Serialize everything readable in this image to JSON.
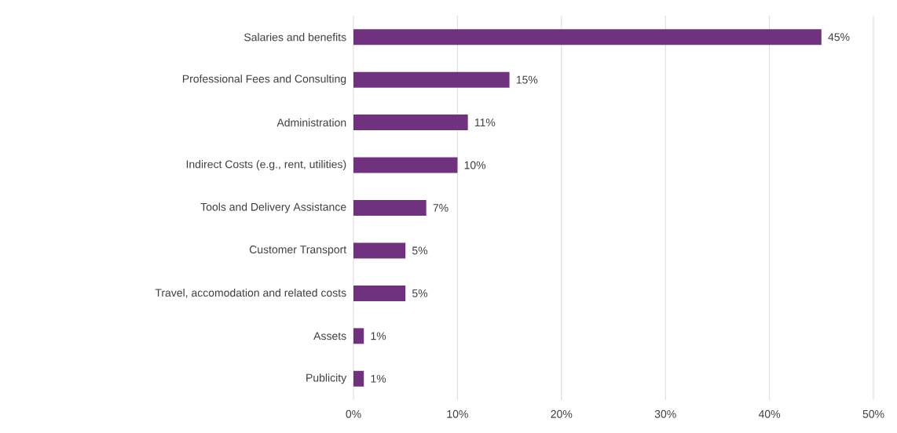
{
  "chart_data": {
    "type": "bar",
    "orientation": "horizontal",
    "categories": [
      "Salaries and benefits",
      "Professional Fees and Consulting",
      "Administration",
      "Indirect Costs (e.g., rent, utilities)",
      "Tools and Delivery Assistance",
      "Customer Transport",
      "Travel, accomodation and related costs",
      "Assets",
      "Publicity"
    ],
    "values": [
      45,
      15,
      11,
      10,
      7,
      5,
      5,
      1,
      1
    ],
    "value_labels": [
      "45%",
      "15%",
      "11%",
      "10%",
      "7%",
      "5%",
      "5%",
      "1%",
      "1%"
    ],
    "color": "#70327f",
    "xlim": [
      0,
      50
    ],
    "xticks": [
      {
        "value": 0,
        "label": "0%"
      },
      {
        "value": 10,
        "label": "10%"
      },
      {
        "value": 20,
        "label": "20%"
      },
      {
        "value": 30,
        "label": "30%"
      },
      {
        "value": 40,
        "label": "40%"
      },
      {
        "value": 50,
        "label": "50%"
      }
    ],
    "grid": "x"
  }
}
